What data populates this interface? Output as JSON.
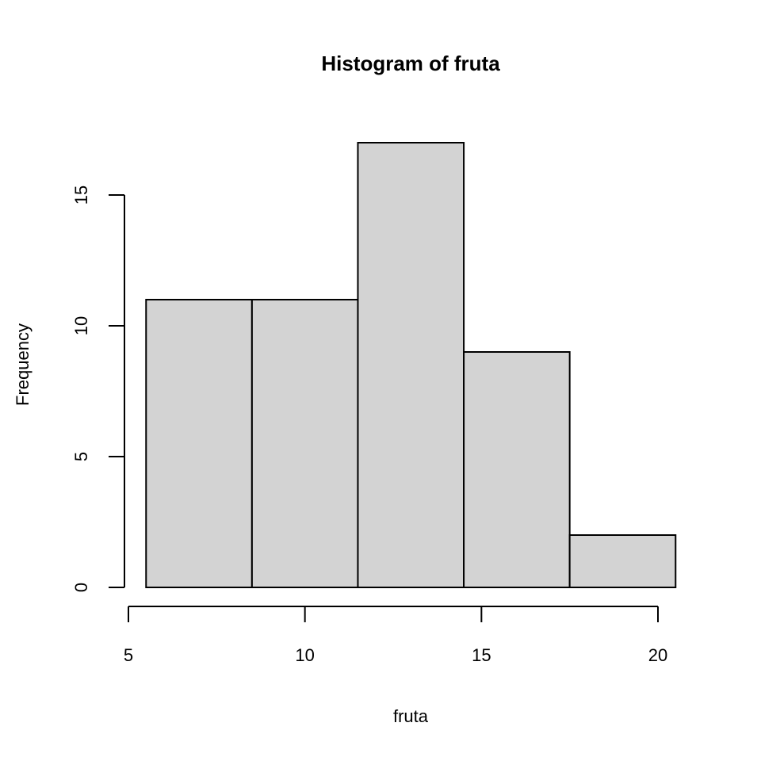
{
  "chart_data": {
    "type": "bar",
    "title": "Histogram of fruta",
    "xlabel": "fruta",
    "ylabel": "Frequency",
    "bins": [
      {
        "start": 5.5,
        "end": 8.5,
        "count": 11
      },
      {
        "start": 8.5,
        "end": 11.5,
        "count": 11
      },
      {
        "start": 11.5,
        "end": 14.5,
        "count": 17
      },
      {
        "start": 14.5,
        "end": 17.5,
        "count": 9
      },
      {
        "start": 17.5,
        "end": 20.5,
        "count": 2
      }
    ],
    "x_ticks": [
      5,
      10,
      15,
      20
    ],
    "y_ticks": [
      0,
      5,
      10,
      15
    ],
    "xlim": [
      5,
      20.5
    ],
    "ylim": [
      0,
      17
    ],
    "bar_fill": "#d3d3d3",
    "bar_stroke": "#000000",
    "grid": false,
    "legend": "none"
  }
}
